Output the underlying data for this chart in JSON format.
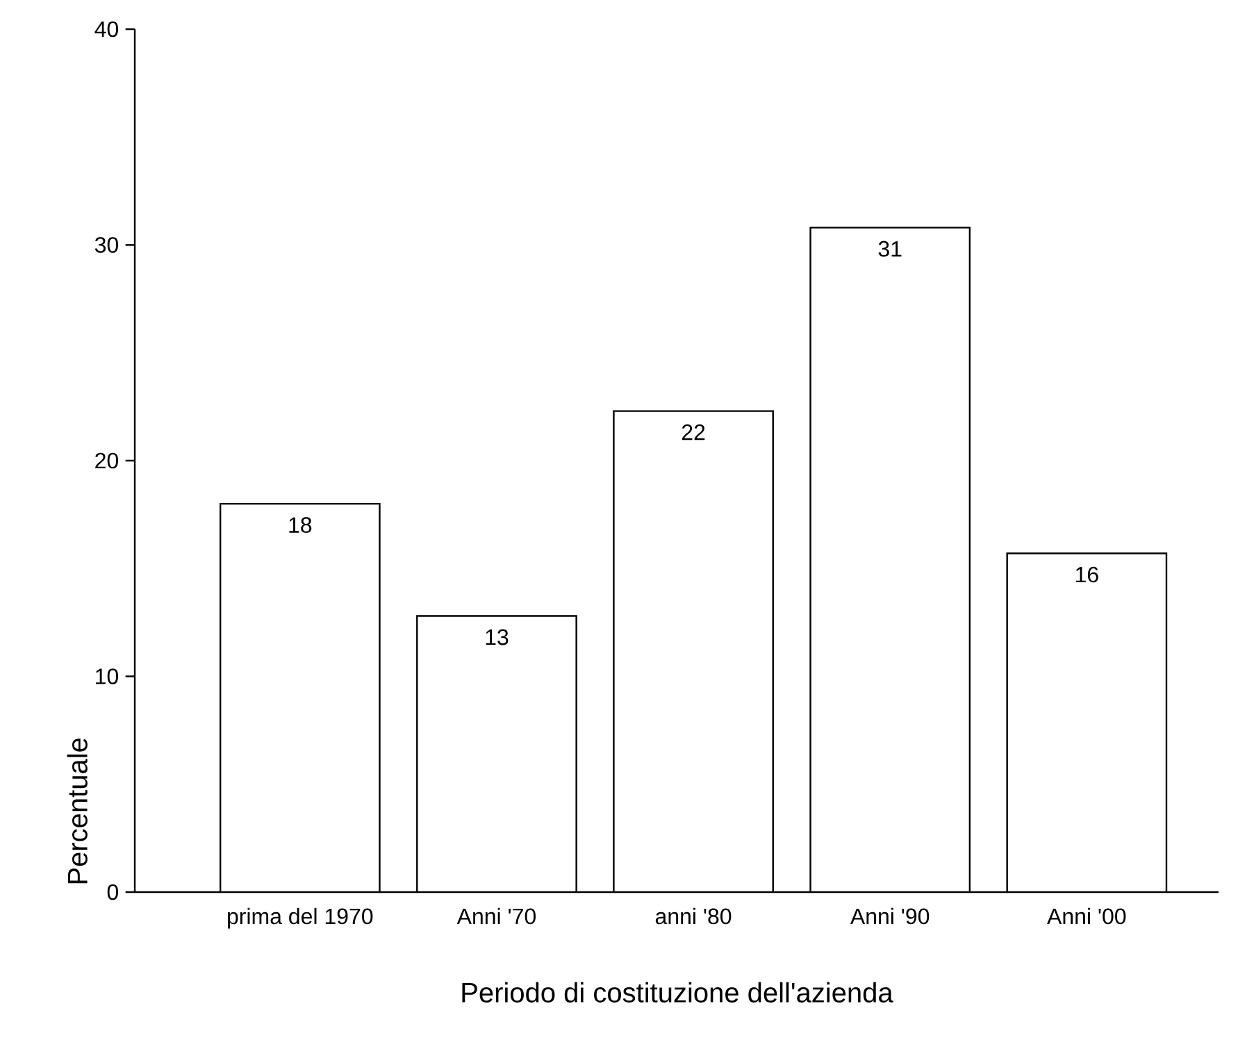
{
  "chart_data": {
    "type": "bar",
    "xlabel": "Periodo di costituzione dell'azienda",
    "ylabel": "Percentuale",
    "categories": [
      "prima del 1970",
      "Anni '70",
      "anni '80",
      "Anni '90",
      "Anni '00"
    ],
    "values": [
      18.0,
      12.8,
      22.3,
      30.8,
      15.7
    ],
    "value_labels": [
      "18",
      "13",
      "22",
      "31",
      "16"
    ],
    "color": "#ffffff",
    "ylim": [
      0,
      40
    ],
    "yticks": [
      0,
      10,
      20,
      30,
      40
    ],
    "grid": false
  }
}
